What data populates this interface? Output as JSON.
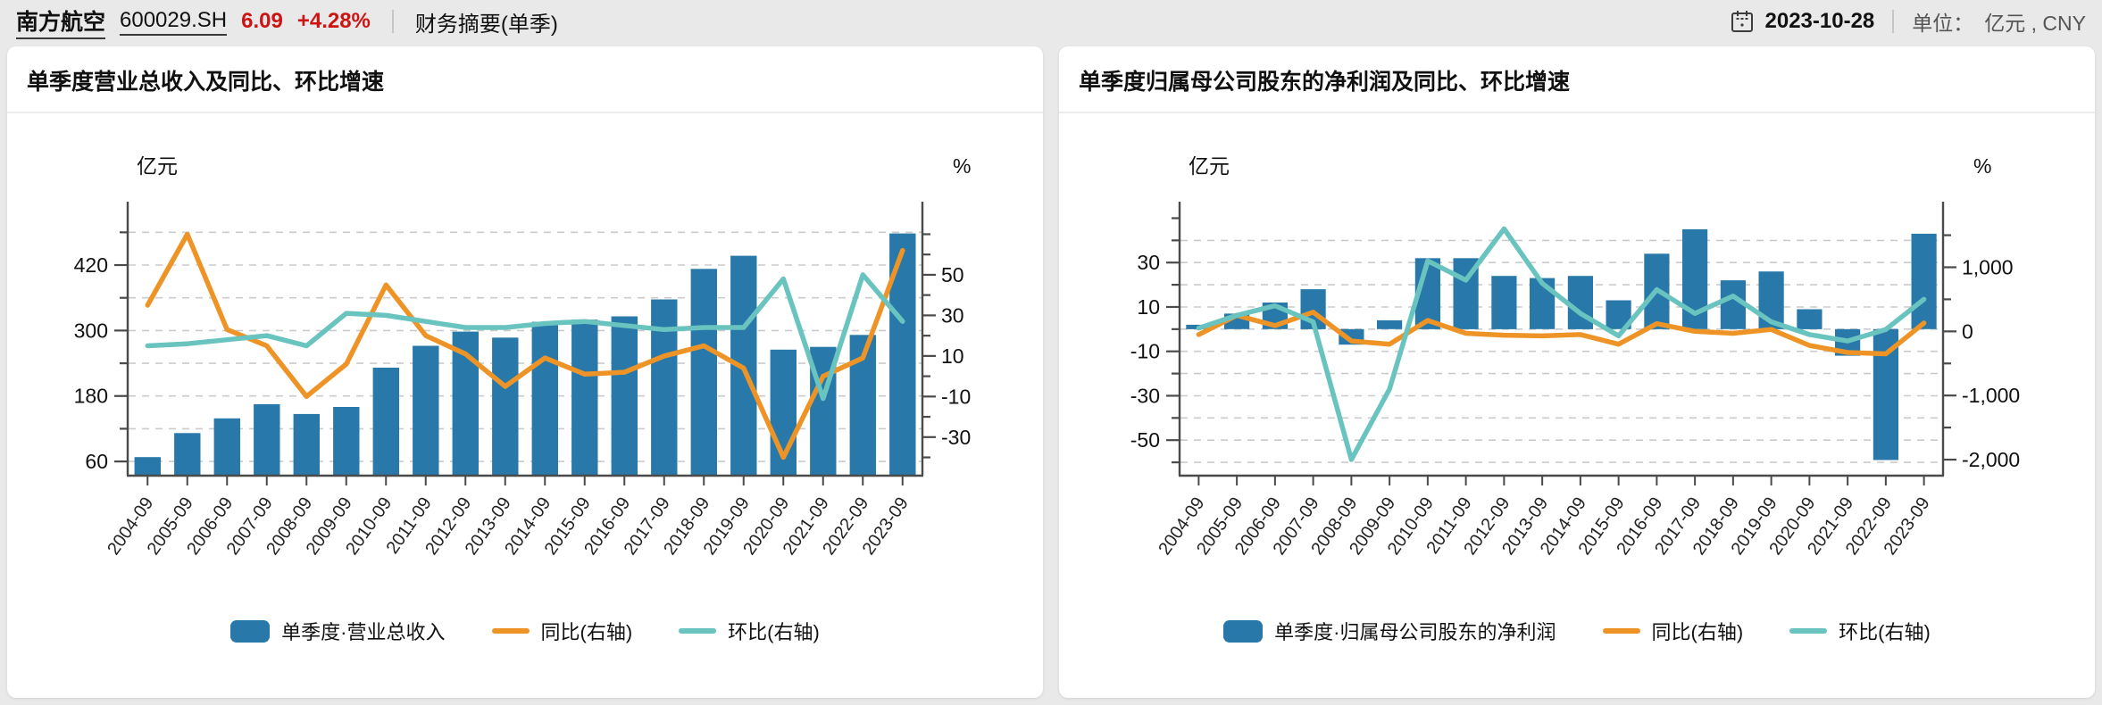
{
  "header": {
    "stock_name": "南方航空",
    "stock_code": "600029.SH",
    "price": "6.09",
    "change_pct": "+4.28%",
    "quote_color": "#cc1414",
    "page_title": "财务摘要(单季)",
    "date": "2023-10-28",
    "unit_label": "单位：",
    "unit_value": "亿元 , CNY"
  },
  "chart_data": [
    {
      "type": "bar+line",
      "title": "单季度营业总收入及同比、环比增速",
      "categories": [
        "2004-09",
        "2005-09",
        "2006-09",
        "2007-09",
        "2008-09",
        "2009-09",
        "2010-09",
        "2011-09",
        "2012-09",
        "2013-09",
        "2014-09",
        "2015-09",
        "2016-09",
        "2017-09",
        "2018-09",
        "2019-09",
        "2020-09",
        "2021-09",
        "2022-09",
        "2023-09"
      ],
      "series": [
        {
          "name": "单季度·营业总收入",
          "type": "bar",
          "axis": "left",
          "color": "#2879a9",
          "values": [
            68,
            112,
            139,
            165,
            147,
            160,
            232,
            272,
            298,
            287,
            316,
            320,
            326,
            357,
            413,
            437,
            265,
            270,
            292,
            478
          ]
        },
        {
          "name": "同比(右轴)",
          "type": "line",
          "axis": "right",
          "color": "#ee9427",
          "values": [
            35,
            70,
            23,
            15,
            -10,
            6,
            45,
            20,
            11,
            -5,
            9,
            1,
            2,
            10,
            15,
            4,
            -40,
            0,
            9,
            62
          ]
        },
        {
          "name": "环比(右轴)",
          "type": "line",
          "axis": "right",
          "color": "#69c3bf",
          "values": [
            15,
            16,
            18,
            20,
            15,
            31,
            30,
            27,
            24,
            24,
            26,
            27,
            25,
            23,
            24,
            24,
            48,
            -11,
            50,
            27
          ]
        }
      ],
      "left_axis": {
        "unit": "亿元",
        "min": 34,
        "max": 510,
        "tick_min": 60,
        "tick_max": 480,
        "tick_step": 60,
        "labeled": [
          420,
          300,
          180,
          60
        ],
        "grid_min": 60,
        "grid_max": 480,
        "grid_step": 60
      },
      "right_axis": {
        "unit": "%",
        "min": -49,
        "max": 79,
        "tick_min": -40,
        "tick_max": 70,
        "tick_step": 10,
        "labeled": [
          50,
          30,
          10,
          -10,
          -30
        ]
      }
    },
    {
      "type": "bar+line",
      "title": "单季度归属母公司股东的净利润及同比、环比增速",
      "categories": [
        "2004-09",
        "2005-09",
        "2006-09",
        "2007-09",
        "2008-09",
        "2009-09",
        "2010-09",
        "2011-09",
        "2012-09",
        "2013-09",
        "2014-09",
        "2015-09",
        "2016-09",
        "2017-09",
        "2018-09",
        "2019-09",
        "2020-09",
        "2021-09",
        "2022-09",
        "2023-09"
      ],
      "series": [
        {
          "name": "单季度·归属母公司股东的净利润",
          "type": "bar",
          "axis": "left",
          "color": "#2879a9",
          "values": [
            2,
            7,
            12,
            18,
            -7,
            4,
            32,
            32,
            24,
            23,
            24,
            13,
            34,
            45,
            22,
            26,
            9,
            -12,
            -59,
            43
          ]
        },
        {
          "name": "同比(右轴)",
          "type": "line",
          "axis": "right",
          "color": "#ee9427",
          "values": [
            -50,
            250,
            90,
            300,
            -150,
            -200,
            170,
            -30,
            -60,
            -70,
            -50,
            -200,
            120,
            0,
            -30,
            30,
            -220,
            -330,
            -350,
            130
          ]
        },
        {
          "name": "环比(右轴)",
          "type": "line",
          "axis": "right",
          "color": "#69c3bf",
          "values": [
            50,
            250,
            400,
            150,
            -2000,
            -900,
            1100,
            800,
            1600,
            750,
            280,
            -70,
            650,
            280,
            550,
            150,
            -50,
            -150,
            30,
            500
          ]
        }
      ],
      "left_axis": {
        "unit": "亿元",
        "min": -66,
        "max": 51,
        "tick_min": -60,
        "tick_max": 50,
        "tick_step": 10,
        "labeled": [
          30,
          10,
          -10,
          -30,
          -50
        ],
        "grid_min": -60,
        "grid_max": 40,
        "grid_step": 10
      },
      "right_axis": {
        "unit": "%",
        "min": -2250,
        "max": 1800,
        "tick_min": -2000,
        "tick_max": 1500,
        "tick_step": 500,
        "labeled": [
          1000,
          0,
          -1000,
          -2000
        ]
      }
    }
  ]
}
